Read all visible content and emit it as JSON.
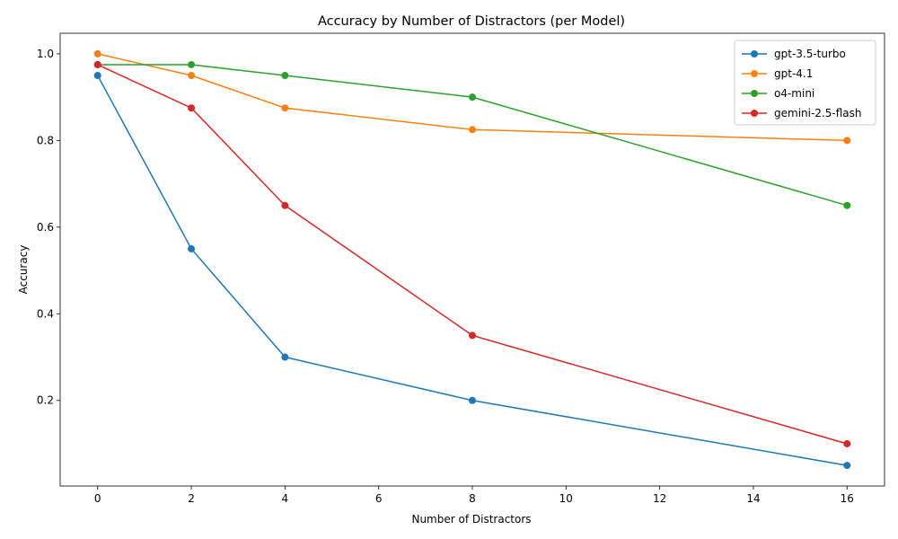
{
  "chart_data": {
    "type": "line",
    "title": "Accuracy by Number of Distractors (per Model)",
    "xlabel": "Number of Distractors",
    "ylabel": "Accuracy",
    "x": [
      0,
      2,
      4,
      8,
      16
    ],
    "xlim": [
      -0.8,
      16.8
    ],
    "ylim": [
      0.0025,
      1.0475
    ],
    "xticks": [
      "0",
      "2",
      "4",
      "6",
      "8",
      "10",
      "12",
      "14",
      "16"
    ],
    "yticks": [
      "0.2",
      "0.4",
      "0.6",
      "0.8",
      "1.0"
    ],
    "grid": false,
    "legend_position": "top-right",
    "series": [
      {
        "name": "gpt-3.5-turbo",
        "color": "#1f77b4",
        "values": [
          0.95,
          0.55,
          0.3,
          0.2,
          0.05
        ]
      },
      {
        "name": "gpt-4.1",
        "color": "#ff7f0e",
        "values": [
          1.0,
          0.95,
          0.875,
          0.825,
          0.8
        ]
      },
      {
        "name": "o4-mini",
        "color": "#2ca02c",
        "values": [
          0.975,
          0.975,
          0.95,
          0.9,
          0.65
        ]
      },
      {
        "name": "gemini-2.5-flash",
        "color": "#d62728",
        "values": [
          0.975,
          0.875,
          0.65,
          0.35,
          0.1
        ]
      }
    ]
  }
}
